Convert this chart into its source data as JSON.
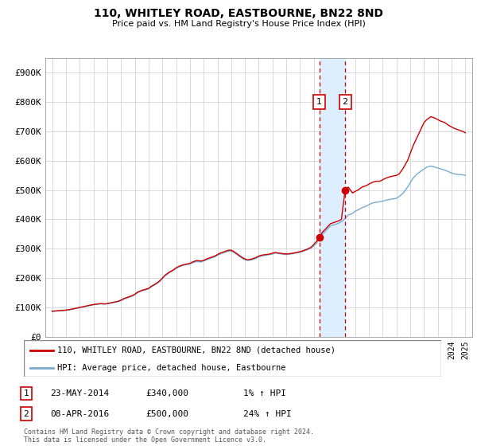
{
  "title": "110, WHITLEY ROAD, EASTBOURNE, BN22 8ND",
  "subtitle": "Price paid vs. HM Land Registry's House Price Index (HPI)",
  "yticks": [
    0,
    100000,
    200000,
    300000,
    400000,
    500000,
    600000,
    700000,
    800000,
    900000
  ],
  "ytick_labels": [
    "£0",
    "£100K",
    "£200K",
    "£300K",
    "£400K",
    "£500K",
    "£600K",
    "£700K",
    "£800K",
    "£900K"
  ],
  "xlim_start": 1994.5,
  "xlim_end": 2025.5,
  "ylim_min": 0,
  "ylim_max": 950000,
  "red_line_color": "#cc0000",
  "blue_line_color": "#7aabcc",
  "marker_color": "#cc0000",
  "vline1_x": 2014.39,
  "vline2_x": 2016.27,
  "marker1_x": 2014.39,
  "marker1_y": 340000,
  "marker2_x": 2016.27,
  "marker2_y": 500000,
  "shade_color": "#ddeeff",
  "legend1_label": "110, WHITLEY ROAD, EASTBOURNE, BN22 8ND (detached house)",
  "legend2_label": "HPI: Average price, detached house, Eastbourne",
  "table_rows": [
    {
      "num": "1",
      "date": "23-MAY-2014",
      "price": "£340,000",
      "change": "1% ↑ HPI"
    },
    {
      "num": "2",
      "date": "08-APR-2016",
      "price": "£500,000",
      "change": "24% ↑ HPI"
    }
  ],
  "footer": "Contains HM Land Registry data © Crown copyright and database right 2024.\nThis data is licensed under the Open Government Licence v3.0.",
  "red_data": [
    [
      1995.0,
      87000
    ],
    [
      1995.2,
      88000
    ],
    [
      1995.5,
      89000
    ],
    [
      1995.8,
      90000
    ],
    [
      1996.0,
      91000
    ],
    [
      1996.3,
      93000
    ],
    [
      1996.6,
      96000
    ],
    [
      1996.9,
      99000
    ],
    [
      1997.0,
      100000
    ],
    [
      1997.2,
      102000
    ],
    [
      1997.5,
      105000
    ],
    [
      1997.8,
      108000
    ],
    [
      1998.0,
      110000
    ],
    [
      1998.2,
      111000
    ],
    [
      1998.5,
      113000
    ],
    [
      1998.8,
      112000
    ],
    [
      1999.0,
      113000
    ],
    [
      1999.2,
      115000
    ],
    [
      1999.5,
      118000
    ],
    [
      1999.8,
      121000
    ],
    [
      2000.0,
      125000
    ],
    [
      2000.2,
      130000
    ],
    [
      2000.5,
      135000
    ],
    [
      2000.8,
      140000
    ],
    [
      2001.0,
      145000
    ],
    [
      2001.2,
      152000
    ],
    [
      2001.5,
      158000
    ],
    [
      2001.8,
      162000
    ],
    [
      2002.0,
      165000
    ],
    [
      2002.2,
      172000
    ],
    [
      2002.5,
      180000
    ],
    [
      2002.8,
      190000
    ],
    [
      2003.0,
      200000
    ],
    [
      2003.2,
      210000
    ],
    [
      2003.5,
      220000
    ],
    [
      2003.8,
      228000
    ],
    [
      2004.0,
      235000
    ],
    [
      2004.2,
      240000
    ],
    [
      2004.5,
      245000
    ],
    [
      2004.8,
      248000
    ],
    [
      2005.0,
      250000
    ],
    [
      2005.2,
      255000
    ],
    [
      2005.5,
      260000
    ],
    [
      2005.8,
      258000
    ],
    [
      2006.0,
      260000
    ],
    [
      2006.2,
      265000
    ],
    [
      2006.5,
      270000
    ],
    [
      2006.8,
      275000
    ],
    [
      2007.0,
      280000
    ],
    [
      2007.2,
      285000
    ],
    [
      2007.5,
      290000
    ],
    [
      2007.8,
      295000
    ],
    [
      2008.0,
      295000
    ],
    [
      2008.2,
      290000
    ],
    [
      2008.5,
      280000
    ],
    [
      2008.8,
      270000
    ],
    [
      2009.0,
      265000
    ],
    [
      2009.2,
      262000
    ],
    [
      2009.5,
      265000
    ],
    [
      2009.8,
      270000
    ],
    [
      2010.0,
      275000
    ],
    [
      2010.2,
      278000
    ],
    [
      2010.5,
      280000
    ],
    [
      2010.8,
      282000
    ],
    [
      2011.0,
      285000
    ],
    [
      2011.2,
      287000
    ],
    [
      2011.5,
      285000
    ],
    [
      2011.8,
      283000
    ],
    [
      2012.0,
      282000
    ],
    [
      2012.2,
      283000
    ],
    [
      2012.5,
      285000
    ],
    [
      2012.8,
      288000
    ],
    [
      2013.0,
      290000
    ],
    [
      2013.2,
      293000
    ],
    [
      2013.5,
      298000
    ],
    [
      2013.8,
      305000
    ],
    [
      2014.0,
      315000
    ],
    [
      2014.2,
      325000
    ],
    [
      2014.39,
      340000
    ],
    [
      2014.6,
      355000
    ],
    [
      2014.8,
      365000
    ],
    [
      2015.0,
      375000
    ],
    [
      2015.2,
      385000
    ],
    [
      2015.5,
      390000
    ],
    [
      2015.8,
      395000
    ],
    [
      2016.0,
      400000
    ],
    [
      2016.27,
      500000
    ],
    [
      2016.5,
      510000
    ],
    [
      2016.8,
      490000
    ],
    [
      2017.0,
      495000
    ],
    [
      2017.2,
      500000
    ],
    [
      2017.5,
      510000
    ],
    [
      2017.8,
      515000
    ],
    [
      2018.0,
      520000
    ],
    [
      2018.2,
      525000
    ],
    [
      2018.5,
      530000
    ],
    [
      2018.8,
      530000
    ],
    [
      2019.0,
      535000
    ],
    [
      2019.2,
      540000
    ],
    [
      2019.5,
      545000
    ],
    [
      2019.8,
      548000
    ],
    [
      2020.0,
      550000
    ],
    [
      2020.2,
      555000
    ],
    [
      2020.5,
      575000
    ],
    [
      2020.8,
      600000
    ],
    [
      2021.0,
      625000
    ],
    [
      2021.2,
      650000
    ],
    [
      2021.5,
      680000
    ],
    [
      2021.8,
      710000
    ],
    [
      2022.0,
      730000
    ],
    [
      2022.2,
      740000
    ],
    [
      2022.5,
      750000
    ],
    [
      2022.8,
      745000
    ],
    [
      2023.0,
      740000
    ],
    [
      2023.2,
      735000
    ],
    [
      2023.5,
      730000
    ],
    [
      2023.8,
      720000
    ],
    [
      2024.0,
      715000
    ],
    [
      2024.2,
      710000
    ],
    [
      2024.5,
      705000
    ],
    [
      2024.8,
      700000
    ],
    [
      2025.0,
      695000
    ]
  ],
  "blue_data": [
    [
      1995.0,
      86000
    ],
    [
      1995.2,
      87000
    ],
    [
      1995.5,
      88000
    ],
    [
      1995.8,
      89000
    ],
    [
      1996.0,
      90000
    ],
    [
      1996.3,
      92000
    ],
    [
      1996.6,
      95000
    ],
    [
      1996.9,
      98000
    ],
    [
      1997.0,
      99000
    ],
    [
      1997.2,
      101000
    ],
    [
      1997.5,
      104000
    ],
    [
      1997.8,
      107000
    ],
    [
      1998.0,
      109000
    ],
    [
      1998.2,
      110000
    ],
    [
      1998.5,
      112000
    ],
    [
      1998.8,
      111000
    ],
    [
      1999.0,
      112000
    ],
    [
      1999.2,
      114000
    ],
    [
      1999.5,
      117000
    ],
    [
      1999.8,
      120000
    ],
    [
      2000.0,
      123000
    ],
    [
      2000.2,
      128000
    ],
    [
      2000.5,
      133000
    ],
    [
      2000.8,
      138000
    ],
    [
      2001.0,
      143000
    ],
    [
      2001.2,
      150000
    ],
    [
      2001.5,
      156000
    ],
    [
      2001.8,
      160000
    ],
    [
      2002.0,
      163000
    ],
    [
      2002.2,
      170000
    ],
    [
      2002.5,
      178000
    ],
    [
      2002.8,
      188000
    ],
    [
      2003.0,
      198000
    ],
    [
      2003.2,
      208000
    ],
    [
      2003.5,
      218000
    ],
    [
      2003.8,
      226000
    ],
    [
      2004.0,
      233000
    ],
    [
      2004.2,
      238000
    ],
    [
      2004.5,
      243000
    ],
    [
      2004.8,
      246000
    ],
    [
      2005.0,
      248000
    ],
    [
      2005.2,
      252000
    ],
    [
      2005.5,
      256000
    ],
    [
      2005.8,
      255000
    ],
    [
      2006.0,
      258000
    ],
    [
      2006.2,
      262000
    ],
    [
      2006.5,
      267000
    ],
    [
      2006.8,
      272000
    ],
    [
      2007.0,
      278000
    ],
    [
      2007.2,
      282000
    ],
    [
      2007.5,
      287000
    ],
    [
      2007.8,
      292000
    ],
    [
      2008.0,
      292000
    ],
    [
      2008.2,
      287000
    ],
    [
      2008.5,
      277000
    ],
    [
      2008.8,
      267000
    ],
    [
      2009.0,
      262000
    ],
    [
      2009.2,
      260000
    ],
    [
      2009.5,
      262000
    ],
    [
      2009.8,
      267000
    ],
    [
      2010.0,
      272000
    ],
    [
      2010.2,
      275000
    ],
    [
      2010.5,
      278000
    ],
    [
      2010.8,
      280000
    ],
    [
      2011.0,
      282000
    ],
    [
      2011.2,
      285000
    ],
    [
      2011.5,
      283000
    ],
    [
      2011.8,
      281000
    ],
    [
      2012.0,
      280000
    ],
    [
      2012.2,
      281000
    ],
    [
      2012.5,
      283000
    ],
    [
      2012.8,
      286000
    ],
    [
      2013.0,
      288000
    ],
    [
      2013.2,
      291000
    ],
    [
      2013.5,
      296000
    ],
    [
      2013.8,
      302000
    ],
    [
      2014.0,
      310000
    ],
    [
      2014.2,
      318000
    ],
    [
      2014.39,
      337000
    ],
    [
      2014.6,
      348000
    ],
    [
      2014.8,
      358000
    ],
    [
      2015.0,
      368000
    ],
    [
      2015.2,
      378000
    ],
    [
      2015.5,
      382000
    ],
    [
      2015.8,
      387000
    ],
    [
      2016.0,
      392000
    ],
    [
      2016.27,
      403000
    ],
    [
      2016.5,
      415000
    ],
    [
      2016.8,
      420000
    ],
    [
      2017.0,
      428000
    ],
    [
      2017.2,
      432000
    ],
    [
      2017.5,
      440000
    ],
    [
      2017.8,
      445000
    ],
    [
      2018.0,
      450000
    ],
    [
      2018.2,
      455000
    ],
    [
      2018.5,
      458000
    ],
    [
      2018.8,
      460000
    ],
    [
      2019.0,
      462000
    ],
    [
      2019.2,
      465000
    ],
    [
      2019.5,
      468000
    ],
    [
      2019.8,
      470000
    ],
    [
      2020.0,
      472000
    ],
    [
      2020.2,
      478000
    ],
    [
      2020.5,
      490000
    ],
    [
      2020.8,
      510000
    ],
    [
      2021.0,
      525000
    ],
    [
      2021.2,
      540000
    ],
    [
      2021.5,
      555000
    ],
    [
      2021.8,
      565000
    ],
    [
      2022.0,
      572000
    ],
    [
      2022.2,
      578000
    ],
    [
      2022.5,
      582000
    ],
    [
      2022.8,
      578000
    ],
    [
      2023.0,
      575000
    ],
    [
      2023.2,
      572000
    ],
    [
      2023.5,
      568000
    ],
    [
      2023.8,
      562000
    ],
    [
      2024.0,
      558000
    ],
    [
      2024.2,
      555000
    ],
    [
      2024.5,
      553000
    ],
    [
      2024.8,
      552000
    ],
    [
      2025.0,
      550000
    ]
  ]
}
